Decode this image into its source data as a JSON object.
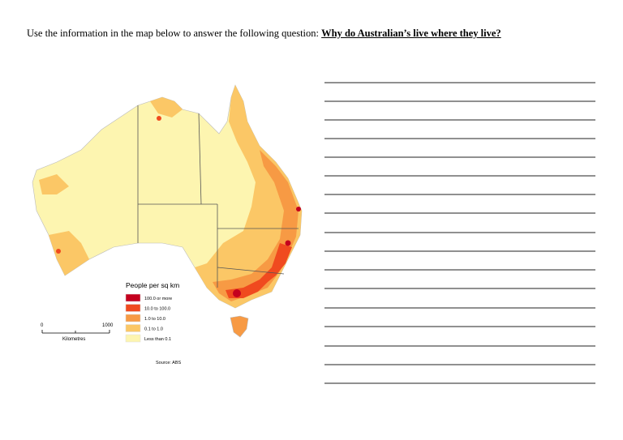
{
  "question": {
    "prompt": "Use the information in the map below to answer the following question:",
    "emphasis": "Why do Australian’s live where they live?"
  },
  "map": {
    "legend_title": "People per sq km",
    "legend": [
      {
        "label": "100.0 or more",
        "color": "#c4001e"
      },
      {
        "label": "10.0 to 100.0",
        "color": "#f04a1f"
      },
      {
        "label": "1.0 to 10.0",
        "color": "#f79a44"
      },
      {
        "label": "0.1 to 1.0",
        "color": "#fbc766"
      },
      {
        "label": "Less than 0.1",
        "color": "#fdf5b0"
      }
    ],
    "scale": {
      "start": "0",
      "end": "1000",
      "unit": "Kilometres"
    },
    "source": "Source: ABS"
  }
}
